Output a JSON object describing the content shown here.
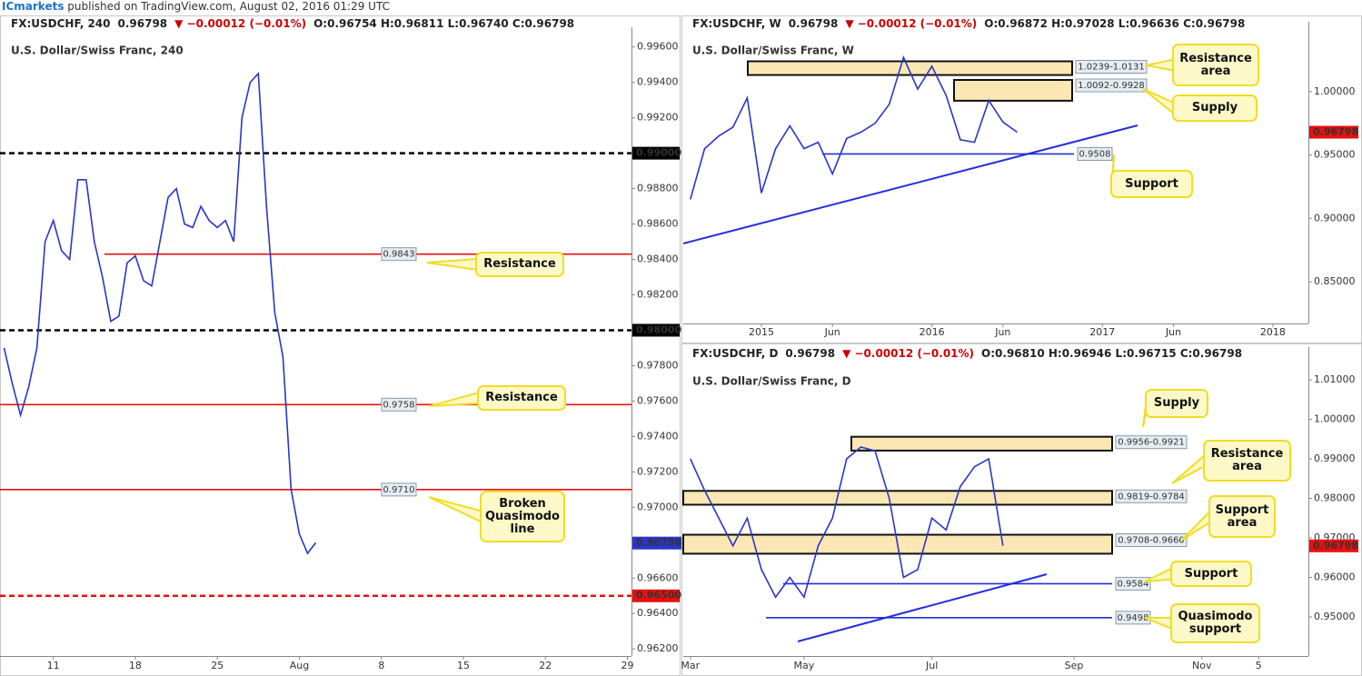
{
  "banner": {
    "author": "ICmarkets",
    "text": "published on TradingView.com, August 02, 2016 01:29 UTC"
  },
  "chart_data": [
    {
      "type": "line",
      "title": "U.S. Dollar/Swiss Franc, 240",
      "header": {
        "symbol": "FX:USDCHF, 240",
        "price": "0.96798",
        "change": "▼ −0.00012 (−0.01%)",
        "ohlc": "O:0.96754 H:0.96811 L:0.96740 C:0.96798"
      },
      "categories": [
        null,
        null,
        null,
        null,
        null,
        null,
        "11",
        null,
        null,
        null,
        null,
        null,
        null,
        null,
        null,
        null,
        "18",
        null,
        null,
        null,
        null,
        null,
        null,
        null,
        null,
        null,
        "25",
        null,
        null,
        null,
        null,
        null,
        null,
        null,
        null,
        null,
        "Aug",
        null,
        null,
        null,
        null,
        null,
        null,
        null,
        null,
        null,
        "8",
        null,
        null,
        null,
        null,
        null,
        null,
        null,
        null,
        null,
        "15",
        null,
        null,
        null,
        null,
        null,
        null,
        null,
        null,
        null,
        "22",
        null,
        null,
        null,
        null,
        null,
        null,
        null,
        null,
        null,
        "29"
      ],
      "series": [
        {
          "color": "#2a35c8",
          "values": [
            0.979,
            0.977,
            0.9752,
            0.9768,
            0.979,
            0.985,
            0.9862,
            0.9845,
            0.984,
            0.9885,
            0.9885,
            0.985,
            0.983,
            0.9805,
            0.9808,
            0.9838,
            0.9842,
            0.9828,
            0.9825,
            0.985,
            0.9875,
            0.988,
            0.986,
            0.9858,
            0.987,
            0.9862,
            0.9858,
            0.9862,
            0.985,
            0.992,
            0.994,
            0.9945,
            0.987,
            0.981,
            0.9785,
            0.971,
            0.9685,
            0.9674,
            0.968,
            null,
            null,
            null,
            null,
            null,
            null,
            null,
            null,
            null,
            null,
            null,
            null,
            null,
            null,
            null,
            null,
            null,
            null,
            null,
            null,
            null,
            null,
            null,
            null,
            null,
            null,
            null,
            null,
            null,
            null,
            null,
            null,
            null,
            null,
            null,
            null,
            null,
            null
          ]
        }
      ],
      "ylim": [
        0.9616,
        0.9966
      ],
      "yticks": [
        {
          "value": 0.962,
          "label": "0.96200"
        },
        {
          "value": 0.964,
          "label": "0.96400"
        },
        {
          "value": 0.966,
          "label": "0.96600"
        },
        {
          "value": 0.968,
          "label": "0.96800"
        },
        {
          "value": 0.97,
          "label": "0.97000"
        },
        {
          "value": 0.972,
          "label": "0.97200"
        },
        {
          "value": 0.974,
          "label": "0.97400"
        },
        {
          "value": 0.976,
          "label": "0.97600"
        },
        {
          "value": 0.978,
          "label": "0.97800"
        },
        {
          "value": 0.98,
          "label": "0.98000"
        },
        {
          "value": 0.982,
          "label": "0.98200"
        },
        {
          "value": 0.984,
          "label": "0.98400"
        },
        {
          "value": 0.986,
          "label": "0.98600"
        },
        {
          "value": 0.988,
          "label": "0.98800"
        },
        {
          "value": 0.99,
          "label": "0.99000"
        },
        {
          "value": 0.992,
          "label": "0.99200"
        },
        {
          "value": 0.994,
          "label": "0.99400"
        },
        {
          "value": 0.996,
          "label": "0.99600"
        }
      ],
      "levels": [
        {
          "value": 0.99,
          "label": "0.99000",
          "color": "#000000",
          "dashed": true
        },
        {
          "value": 0.98,
          "label": "0.98000",
          "color": "#000000",
          "dashed": true
        },
        {
          "value": 0.965,
          "label": "0.96500",
          "color": "#e8100f",
          "dashed": true
        },
        {
          "value": 0.9843,
          "color": "#e8100f",
          "dashed": false
        },
        {
          "value": 0.9758,
          "color": "#e8100f",
          "dashed": false
        },
        {
          "value": 0.971,
          "label": "0.9710",
          "color": "#e8100f",
          "dashed": false
        }
      ],
      "zones": [],
      "last_price": 0.96798,
      "last_price_color": "#2a35c8",
      "callouts": [
        "Resistance",
        "Resistance",
        "Broken Quasimodo line"
      ]
    },
    {
      "type": "line",
      "title": "U.S. Dollar/Swiss Franc, W",
      "header": {
        "symbol": "FX:USDCHF, W",
        "price": "0.96798",
        "change": "▼ −0.00012 (−0.01%)",
        "ohlc": "O:0.96872 H:0.97028 L:0.96636 C:0.96798"
      },
      "categories": [
        null,
        null,
        null,
        null,
        null,
        "2015",
        null,
        null,
        null,
        null,
        "Jun",
        null,
        null,
        null,
        null,
        null,
        null,
        "2016",
        null,
        null,
        null,
        null,
        "Jun",
        null,
        null,
        null,
        null,
        null,
        null,
        "2017",
        null,
        null,
        null,
        null,
        "Jun",
        null,
        null,
        null,
        null,
        null,
        null,
        "2018",
        null,
        null
      ],
      "series": [
        {
          "color": "#2a35c8",
          "values": [
            0.915,
            0.955,
            0.965,
            0.972,
            0.995,
            0.92,
            0.955,
            0.973,
            0.955,
            0.96,
            0.935,
            0.963,
            0.968,
            0.975,
            0.99,
            1.027,
            1.002,
            1.02,
            0.997,
            0.962,
            0.96,
            0.993,
            0.976,
            0.968,
            null,
            null,
            null,
            null,
            null,
            null,
            null,
            null,
            null,
            null,
            null,
            null,
            null,
            null,
            null,
            null,
            null,
            null,
            null,
            null
          ]
        }
      ],
      "ylim": [
        0.8171,
        1.0479
      ],
      "yticks": [
        {
          "value": 0.85,
          "label": "0.85000"
        },
        {
          "value": 0.9,
          "label": "0.90000"
        },
        {
          "value": 0.95,
          "label": "0.95000"
        },
        {
          "value": 1.0,
          "label": "1.00000"
        }
      ],
      "levels": [
        {
          "value": 0.9508,
          "color": "#1f2ee0",
          "dashed": false
        }
      ],
      "zones": [
        {
          "from": 1.0131,
          "to": 1.0239,
          "label": "1.0239-1.0131"
        },
        {
          "from": 0.9928,
          "to": 1.0092,
          "label": "1.0092-0.9928"
        }
      ],
      "last_price": 0.96798,
      "last_price_color": "#e8100f",
      "callouts": [
        "Resistance area",
        "Supply",
        "Support"
      ]
    },
    {
      "type": "line",
      "title": "U.S. Dollar/Swiss Franc, D",
      "header": {
        "symbol": "FX:USDCHF, D",
        "price": "0.96798",
        "change": "▼ −0.00012 (−0.01%)",
        "ohlc": "O:0.96810 H:0.96946 L:0.96715 C:0.96798"
      },
      "categories": [
        "Mar",
        null,
        null,
        null,
        null,
        null,
        null,
        null,
        "May",
        null,
        null,
        null,
        null,
        null,
        null,
        null,
        null,
        "Jul",
        null,
        null,
        null,
        null,
        null,
        null,
        null,
        null,
        null,
        "Sep",
        null,
        null,
        null,
        null,
        null,
        null,
        null,
        null,
        "Nov",
        null,
        null,
        null,
        "5",
        null,
        null,
        null
      ],
      "series": [
        {
          "color": "#2a35c8",
          "values": [
            0.99,
            0.982,
            0.975,
            0.968,
            0.975,
            0.962,
            0.955,
            0.96,
            0.955,
            0.968,
            0.975,
            0.99,
            0.993,
            0.992,
            0.98,
            0.96,
            0.962,
            0.975,
            0.972,
            0.983,
            0.988,
            0.99,
            0.968,
            null,
            null,
            null,
            null,
            null,
            null,
            null,
            null,
            null,
            null,
            null,
            null,
            null,
            null,
            null,
            null,
            null,
            null,
            null,
            null,
            null
          ]
        }
      ],
      "ylim": [
        0.9401,
        1.016
      ],
      "yticks": [
        {
          "value": 0.95,
          "label": "0.95000"
        },
        {
          "value": 0.96,
          "label": "0.96000"
        },
        {
          "value": 0.97,
          "label": "0.97000"
        },
        {
          "value": 0.98,
          "label": "0.98000"
        },
        {
          "value": 0.99,
          "label": "0.99000"
        },
        {
          "value": 1.0,
          "label": "1.00000"
        },
        {
          "value": 1.01,
          "label": "1.01000"
        }
      ],
      "levels": [
        {
          "value": 0.9584,
          "color": "#1f2ee0",
          "dashed": false
        },
        {
          "value": 0.9498,
          "color": "#1f2ee0",
          "dashed": false
        }
      ],
      "zones": [
        {
          "from": 0.9921,
          "to": 0.9956,
          "label": "0.9956-0.9921"
        },
        {
          "from": 0.9784,
          "to": 0.9819,
          "label": "0.9819-0.9784"
        },
        {
          "from": 0.966,
          "to": 0.9708,
          "label": "0.9708-0.9660"
        }
      ],
      "last_price": 0.96798,
      "last_price_color": "#e8100f",
      "callouts": [
        "Supply",
        "Resistance area",
        "Support area",
        "Support",
        "Quasimodo support"
      ]
    }
  ]
}
